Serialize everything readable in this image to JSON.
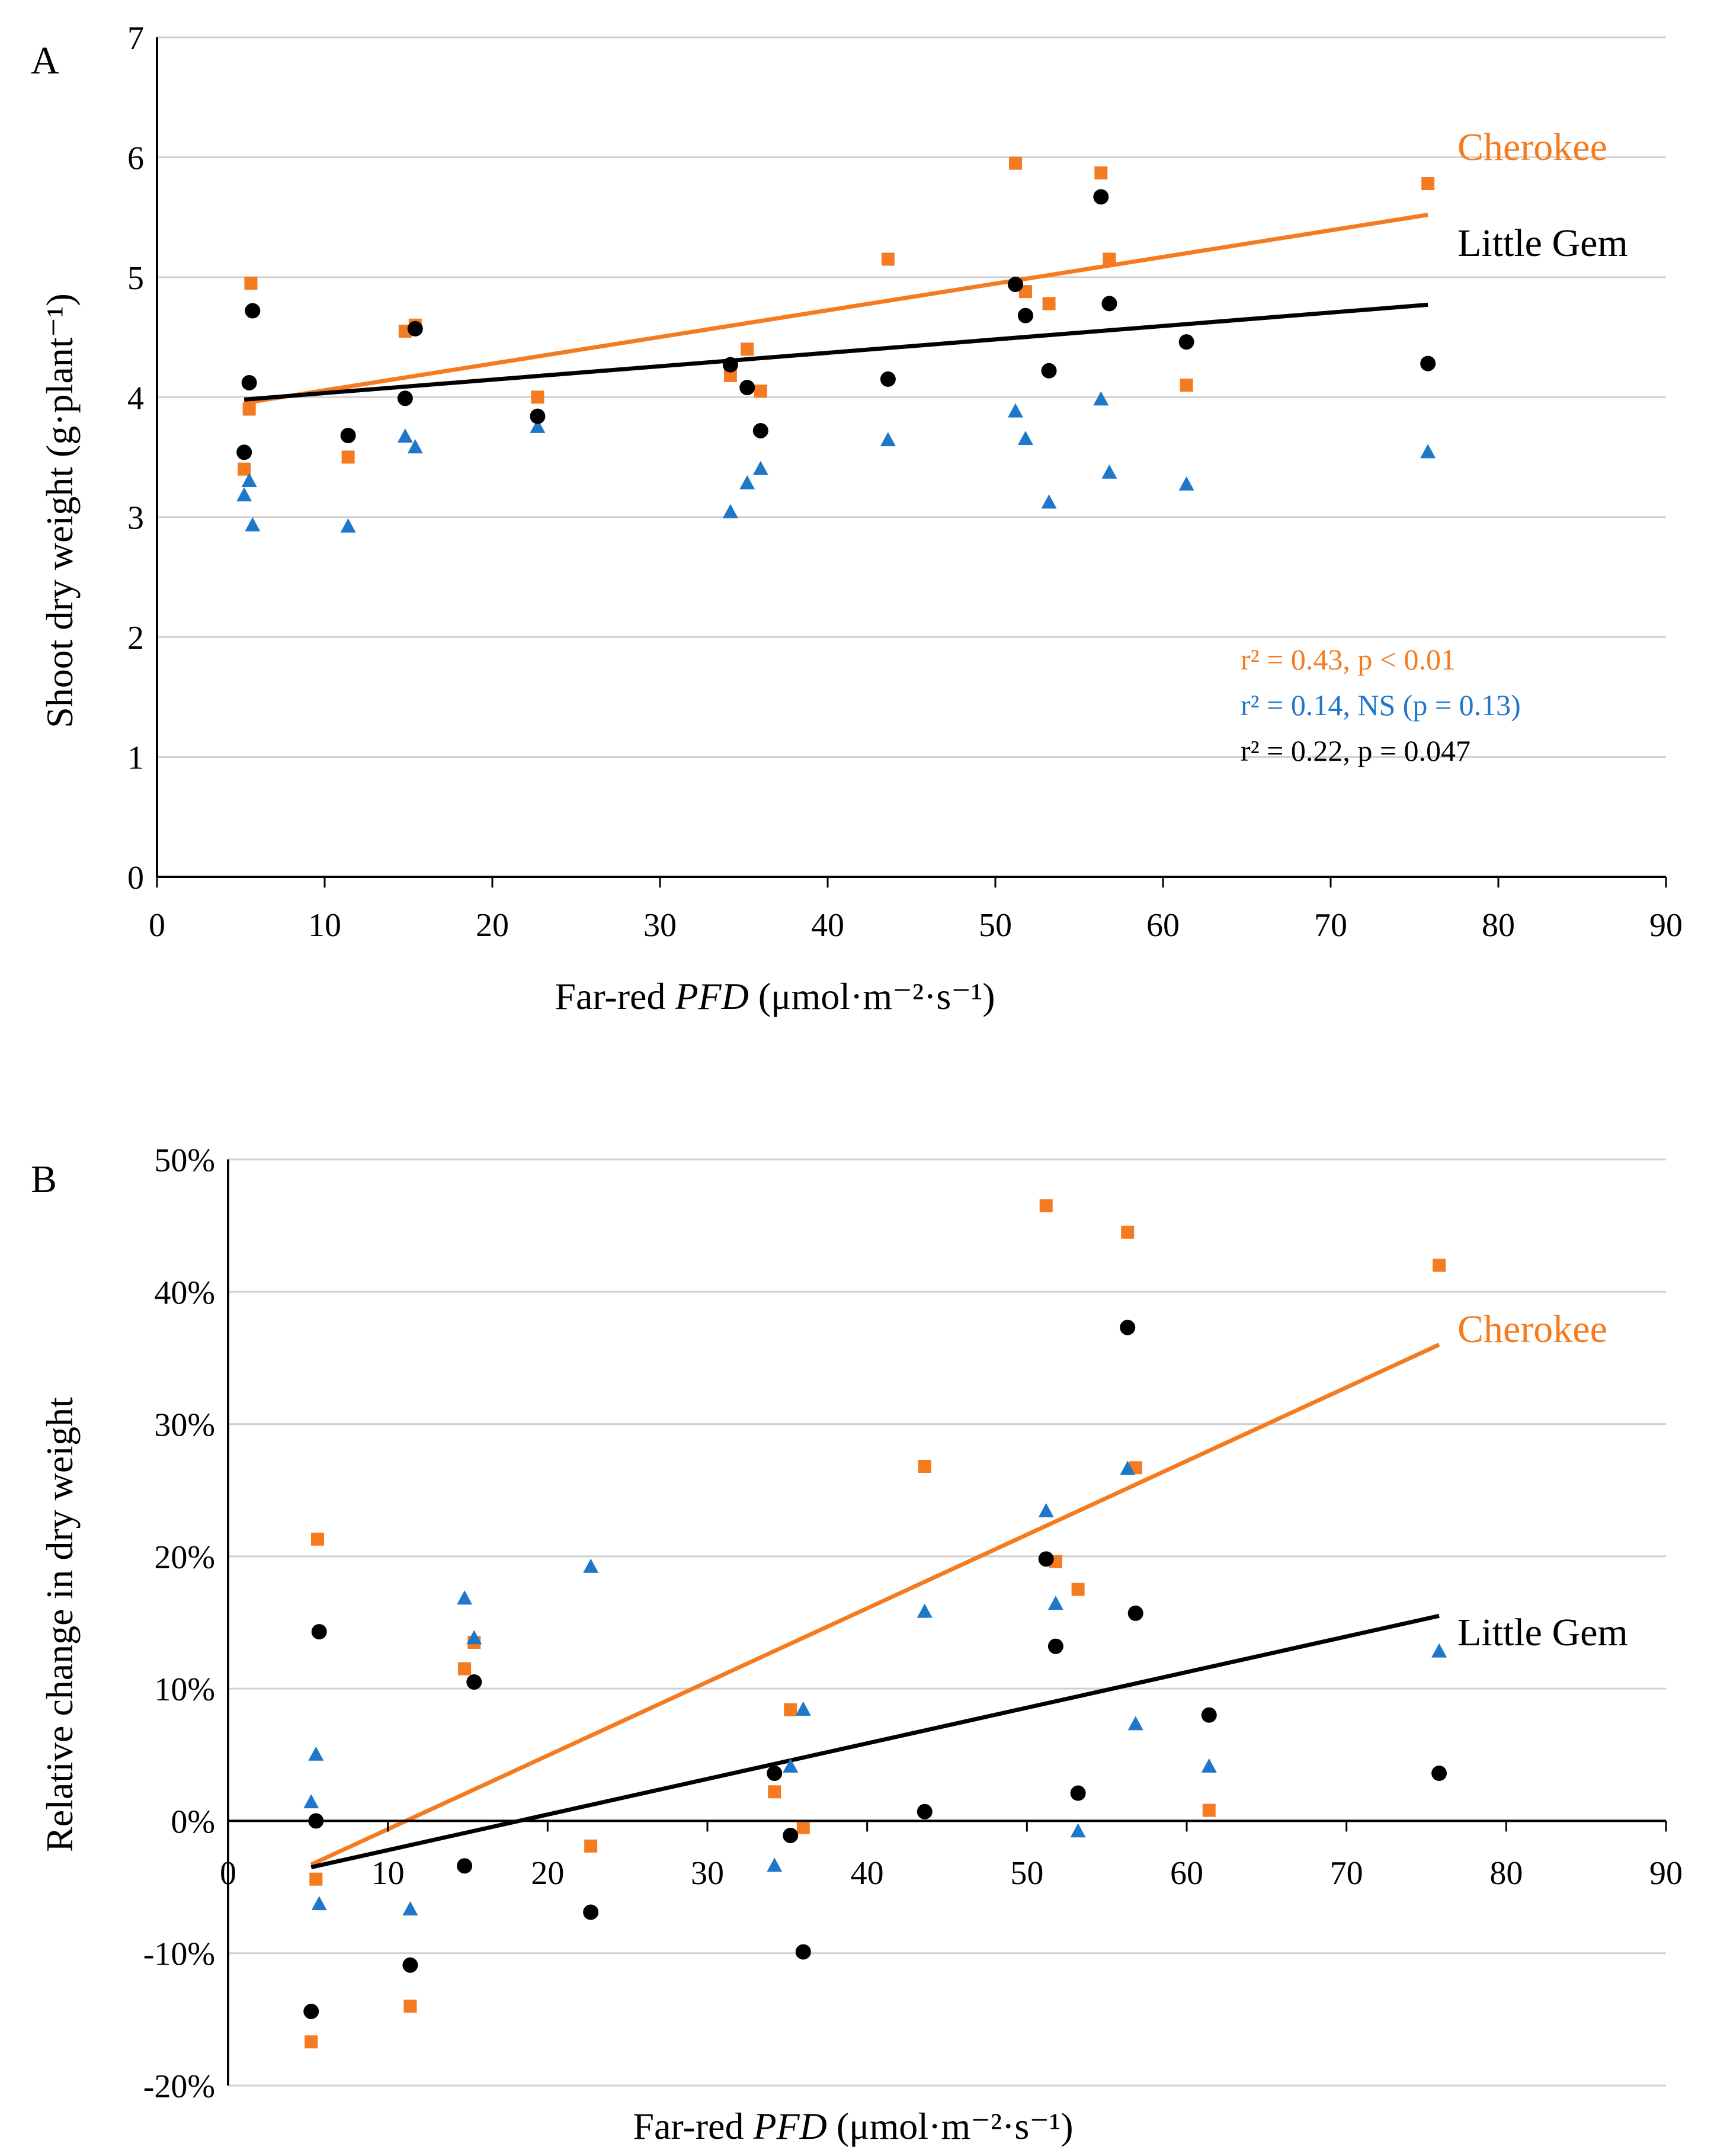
{
  "colors": {
    "cherokee": "#F47B20",
    "blue": "#1F77C9",
    "littlegem": "#000000",
    "grid": "#D0D0D0",
    "axis": "#000000"
  },
  "chart_data": [
    {
      "panel_label": "A",
      "type": "scatter",
      "xlabel_pre": "Far-red ",
      "xlabel_italic": "PFD",
      "xlabel_post": " (μmol·m⁻²·s⁻¹)",
      "ylabel": "Shoot dry weight  (g·plant⁻¹)",
      "xlim": [
        0,
        90
      ],
      "ylim": [
        0,
        7
      ],
      "xticks": [
        0,
        10,
        20,
        30,
        40,
        50,
        60,
        70,
        80,
        90
      ],
      "yticks": [
        0,
        1,
        2,
        3,
        4,
        5,
        6,
        7
      ],
      "ytick_format": "number",
      "grid": true,
      "series": [
        {
          "name": "Cherokee",
          "marker": "square",
          "color": "#F47B20",
          "x": [
            5.2,
            5.5,
            5.6,
            11.4,
            14.8,
            15.4,
            22.7,
            34.2,
            35.2,
            36.0,
            43.6,
            51.2,
            51.8,
            53.2,
            56.3,
            56.8,
            61.4,
            75.8
          ],
          "y": [
            3.4,
            3.9,
            4.95,
            3.5,
            4.55,
            4.6,
            4.0,
            4.18,
            4.4,
            4.05,
            5.15,
            5.95,
            4.88,
            4.78,
            5.87,
            5.15,
            4.1,
            5.78
          ]
        },
        {
          "name": "Blue",
          "marker": "triangle",
          "color": "#1F77C9",
          "x": [
            5.2,
            5.5,
            5.7,
            11.4,
            14.8,
            15.4,
            22.7,
            34.2,
            35.2,
            36.0,
            43.6,
            51.2,
            51.8,
            53.2,
            56.3,
            56.8,
            61.4,
            75.8
          ],
          "y": [
            3.18,
            3.3,
            2.93,
            2.92,
            3.67,
            3.58,
            3.75,
            3.04,
            3.28,
            3.4,
            3.64,
            3.88,
            3.65,
            3.12,
            3.98,
            3.37,
            3.27,
            3.54
          ]
        },
        {
          "name": "Little Gem",
          "marker": "circle",
          "color": "#000000",
          "x": [
            5.2,
            5.5,
            5.7,
            11.4,
            14.8,
            15.4,
            22.7,
            34.2,
            35.2,
            36.0,
            43.6,
            51.2,
            51.8,
            53.2,
            56.3,
            56.8,
            61.4,
            75.8
          ],
          "y": [
            3.54,
            4.12,
            4.72,
            3.68,
            3.99,
            4.57,
            3.84,
            4.27,
            4.08,
            3.72,
            4.15,
            4.94,
            4.68,
            4.22,
            5.67,
            4.78,
            4.46,
            4.28
          ]
        }
      ],
      "trendlines": [
        {
          "name": "Cherokee",
          "color": "#F47B20",
          "x": [
            5.2,
            75.8
          ],
          "y": [
            3.95,
            5.52
          ]
        },
        {
          "name": "Little Gem",
          "color": "#000000",
          "x": [
            5.2,
            75.8
          ],
          "y": [
            3.98,
            4.77
          ]
        }
      ],
      "line_labels": [
        {
          "text": "Cherokee",
          "color": "#F47B20"
        },
        {
          "text": "Little Gem",
          "color": "#000000"
        }
      ],
      "stats": [
        {
          "text": "r² = 0.43, p < 0.01",
          "color": "#F47B20"
        },
        {
          "text": "r² = 0.14, NS (p = 0.13)",
          "color": "#1F77C9"
        },
        {
          "text": "r² = 0.22, p = 0.047",
          "color": "#000000"
        }
      ]
    },
    {
      "panel_label": "B",
      "type": "scatter",
      "xlabel_pre": "Far-red ",
      "xlabel_italic": "PFD",
      "xlabel_post": " (μmol·m⁻²·s⁻¹)",
      "ylabel": "Relative change in dry weight",
      "xlim": [
        0,
        90
      ],
      "ylim": [
        -20,
        50
      ],
      "xticks": [
        0,
        10,
        20,
        30,
        40,
        50,
        60,
        70,
        80,
        90
      ],
      "yticks": [
        -20,
        -10,
        0,
        10,
        20,
        30,
        40,
        50
      ],
      "ytick_format": "percent",
      "grid": true,
      "series": [
        {
          "name": "Cherokee",
          "marker": "square",
          "color": "#F47B20",
          "x": [
            5.2,
            5.5,
            5.6,
            11.4,
            14.8,
            15.4,
            22.7,
            34.2,
            35.2,
            36.0,
            43.6,
            51.2,
            51.8,
            53.2,
            56.3,
            56.8,
            61.4,
            75.8
          ],
          "y": [
            -16.7,
            -4.4,
            21.3,
            -14.0,
            11.5,
            13.5,
            -1.9,
            2.2,
            8.4,
            -0.5,
            26.8,
            46.5,
            19.6,
            17.5,
            44.5,
            26.7,
            0.8,
            42.0
          ]
        },
        {
          "name": "Blue",
          "marker": "triangle",
          "color": "#1F77C9",
          "x": [
            5.2,
            5.5,
            5.7,
            11.4,
            14.8,
            15.4,
            22.7,
            34.2,
            35.2,
            36.0,
            43.6,
            51.2,
            51.8,
            53.2,
            56.3,
            56.8,
            61.4,
            75.8
          ],
          "y": [
            1.4,
            5.0,
            -6.3,
            -6.7,
            16.8,
            13.8,
            19.2,
            -3.4,
            4.1,
            8.4,
            15.8,
            23.4,
            16.4,
            -0.8,
            26.6,
            7.3,
            4.1,
            12.8
          ]
        },
        {
          "name": "Little Gem",
          "marker": "circle",
          "color": "#000000",
          "x": [
            5.2,
            5.5,
            5.7,
            11.4,
            14.8,
            15.4,
            22.7,
            34.2,
            35.2,
            36.0,
            43.6,
            51.2,
            51.8,
            53.2,
            56.3,
            56.8,
            61.4,
            75.8
          ],
          "y": [
            -14.4,
            0.0,
            14.3,
            -10.9,
            -3.4,
            10.5,
            -6.9,
            3.6,
            -1.1,
            -9.9,
            0.7,
            19.8,
            13.2,
            2.1,
            37.3,
            15.7,
            8.0,
            3.6
          ]
        }
      ],
      "trendlines": [
        {
          "name": "Cherokee",
          "color": "#F47B20",
          "x": [
            5.2,
            75.8
          ],
          "y": [
            -3.3,
            36.0
          ]
        },
        {
          "name": "Little Gem",
          "color": "#000000",
          "x": [
            5.2,
            75.8
          ],
          "y": [
            -3.5,
            15.5
          ]
        }
      ],
      "line_labels": [
        {
          "text": "Cherokee",
          "color": "#F47B20"
        },
        {
          "text": "Little Gem",
          "color": "#000000"
        }
      ],
      "stats": []
    }
  ]
}
